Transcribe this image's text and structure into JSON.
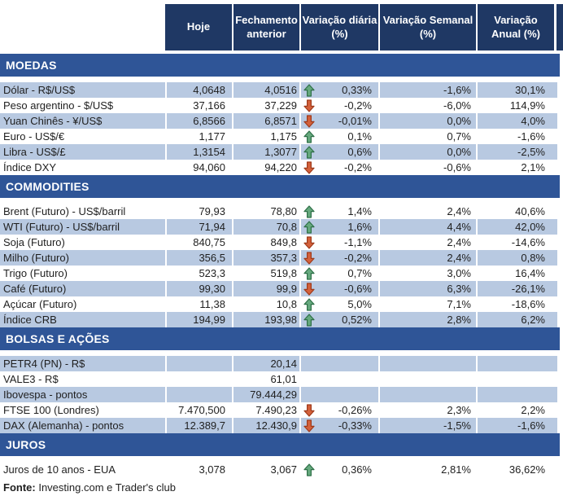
{
  "table": {
    "columns": [
      {
        "label": "Hoje"
      },
      {
        "label": "Fechamento\nanterior"
      },
      {
        "label": "Variação diária\n(%)"
      },
      {
        "label": "Variação Semanal\n(%)"
      },
      {
        "label": "Variação\nAnual (%)"
      }
    ],
    "sections": [
      {
        "title": "MOEDAS",
        "rows": [
          {
            "label": "Dólar - R$/US$",
            "hoje": "4,0648",
            "fechamento": "4,0516",
            "arrow": "up",
            "var_diaria": "0,33%",
            "var_semanal": "-1,6%",
            "var_anual": "30,1%"
          },
          {
            "label": "Peso argentino - $/US$",
            "hoje": "37,166",
            "fechamento": "37,229",
            "arrow": "down",
            "var_diaria": "-0,2%",
            "var_semanal": "-6,0%",
            "var_anual": "114,9%"
          },
          {
            "label": "Yuan Chinês - ¥/US$",
            "hoje": "6,8566",
            "fechamento": "6,8571",
            "arrow": "down",
            "var_diaria": "-0,01%",
            "var_semanal": "0,0%",
            "var_anual": "4,0%"
          },
          {
            "label": "Euro - US$/€",
            "hoje": "1,177",
            "fechamento": "1,175",
            "arrow": "up",
            "var_diaria": "0,1%",
            "var_semanal": "0,7%",
            "var_anual": "-1,6%"
          },
          {
            "label": "Libra - US$/£",
            "hoje": "1,3154",
            "fechamento": "1,3077",
            "arrow": "up",
            "var_diaria": "0,6%",
            "var_semanal": "0,0%",
            "var_anual": "-2,5%"
          },
          {
            "label": "Índice DXY",
            "hoje": "94,060",
            "fechamento": "94,220",
            "arrow": "down",
            "var_diaria": "-0,2%",
            "var_semanal": "-0,6%",
            "var_anual": "2,1%"
          }
        ]
      },
      {
        "title": "COMMODITIES",
        "rows": [
          {
            "label": "Brent (Futuro) - US$/barril",
            "hoje": "79,93",
            "fechamento": "78,80",
            "arrow": "up",
            "var_diaria": "1,4%",
            "var_semanal": "2,4%",
            "var_anual": "40,6%"
          },
          {
            "label": "WTI (Futuro) - US$/barril",
            "hoje": "71,94",
            "fechamento": "70,8",
            "arrow": "up",
            "var_diaria": "1,6%",
            "var_semanal": "4,4%",
            "var_anual": "42,0%"
          },
          {
            "label": "Soja (Futuro)",
            "hoje": "840,75",
            "fechamento": "849,8",
            "arrow": "down",
            "var_diaria": "-1,1%",
            "var_semanal": "2,4%",
            "var_anual": "-14,6%"
          },
          {
            "label": "Milho (Futuro)",
            "hoje": "356,5",
            "fechamento": "357,3",
            "arrow": "down",
            "var_diaria": "-0,2%",
            "var_semanal": "2,4%",
            "var_anual": "0,8%"
          },
          {
            "label": "Trigo (Futuro)",
            "hoje": "523,3",
            "fechamento": "519,8",
            "arrow": "up",
            "var_diaria": "0,7%",
            "var_semanal": "3,0%",
            "var_anual": "16,4%"
          },
          {
            "label": "Café (Futuro)",
            "hoje": "99,30",
            "fechamento": "99,9",
            "arrow": "down",
            "var_diaria": "-0,6%",
            "var_semanal": "6,3%",
            "var_anual": "-26,1%"
          },
          {
            "label": "Açúcar (Futuro)",
            "hoje": "11,38",
            "fechamento": "10,8",
            "arrow": "up",
            "var_diaria": "5,0%",
            "var_semanal": "7,1%",
            "var_anual": "-18,6%"
          },
          {
            "label": "Índice CRB",
            "hoje": "194,99",
            "fechamento": "193,98",
            "arrow": "up",
            "var_diaria": "0,52%",
            "var_semanal": "2,8%",
            "var_anual": "6,2%"
          }
        ]
      },
      {
        "title": "BOLSAS E AÇÕES",
        "rows": [
          {
            "label": "PETR4 (PN) - R$",
            "hoje": "",
            "fechamento": "20,14",
            "arrow": "",
            "var_diaria": "",
            "var_semanal": "",
            "var_anual": ""
          },
          {
            "label": "VALE3 - R$",
            "hoje": "",
            "fechamento": "61,01",
            "arrow": "",
            "var_diaria": "",
            "var_semanal": "",
            "var_anual": ""
          },
          {
            "label": "Ibovespa - pontos",
            "hoje": "",
            "fechamento": "79.444,29",
            "arrow": "",
            "var_diaria": "",
            "var_semanal": "",
            "var_anual": ""
          },
          {
            "label": "FTSE 100 (Londres)",
            "hoje": "7.470,500",
            "fechamento": "7.490,23",
            "arrow": "down",
            "var_diaria": "-0,26%",
            "var_semanal": "2,3%",
            "var_anual": "2,2%"
          },
          {
            "label": "DAX (Alemanha) - pontos",
            "hoje": "12.389,7",
            "fechamento": "12.430,9",
            "arrow": "down",
            "var_diaria": "-0,33%",
            "var_semanal": "-1,5%",
            "var_anual": "-1,6%"
          }
        ]
      },
      {
        "title": "JUROS",
        "rows": [
          {
            "label": "Juros de 10 anos - EUA",
            "hoje": "3,078",
            "fechamento": "3,067",
            "arrow": "up",
            "var_diaria": "0,36%",
            "var_semanal": "2,81%",
            "var_anual": "36,62%"
          }
        ]
      }
    ]
  },
  "footer": {
    "bold": "Fonte:",
    "text": "Investing.com e Trader's club"
  },
  "colors": {
    "header_bg": "#1F3864",
    "section_bg": "#2F5597",
    "row_shade": "#B8C9E1",
    "up_arrow": "#66A97E",
    "down_arrow": "#D4613B"
  }
}
